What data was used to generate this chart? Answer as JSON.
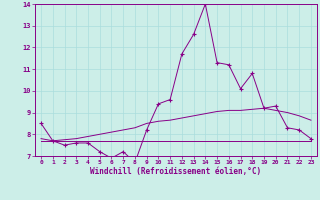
{
  "xlabel": "Windchill (Refroidissement éolien,°C)",
  "bg_color": "#cceee8",
  "line_color": "#880088",
  "grid_color": "#aadddd",
  "xlim": [
    -0.5,
    23.5
  ],
  "ylim": [
    7,
    14
  ],
  "yticks": [
    7,
    8,
    9,
    10,
    11,
    12,
    13,
    14
  ],
  "xticks": [
    0,
    1,
    2,
    3,
    4,
    5,
    6,
    7,
    8,
    9,
    10,
    11,
    12,
    13,
    14,
    15,
    16,
    17,
    18,
    19,
    20,
    21,
    22,
    23
  ],
  "series1_x": [
    0,
    1,
    2,
    3,
    4,
    5,
    6,
    7,
    8,
    9,
    10,
    11,
    12,
    13,
    14,
    15,
    16,
    17,
    18,
    19,
    20,
    21,
    22,
    23
  ],
  "series1_y": [
    8.5,
    7.7,
    7.5,
    7.6,
    7.6,
    7.2,
    6.9,
    7.2,
    6.7,
    8.2,
    9.4,
    9.6,
    11.7,
    12.6,
    14.0,
    11.3,
    11.2,
    10.1,
    10.8,
    9.2,
    9.3,
    8.3,
    8.2,
    7.8
  ],
  "series2_x": [
    0,
    1,
    2,
    3,
    4,
    5,
    6,
    7,
    8,
    9,
    10,
    11,
    12,
    13,
    14,
    15,
    16,
    17,
    18,
    19,
    20,
    21,
    22,
    23
  ],
  "series2_y": [
    7.8,
    7.7,
    7.75,
    7.8,
    7.9,
    8.0,
    8.1,
    8.2,
    8.3,
    8.5,
    8.6,
    8.65,
    8.75,
    8.85,
    8.95,
    9.05,
    9.1,
    9.1,
    9.15,
    9.2,
    9.1,
    9.0,
    8.85,
    8.65
  ],
  "series3_x": [
    0,
    1,
    2,
    3,
    4,
    5,
    6,
    7,
    8,
    9,
    10,
    11,
    12,
    13,
    14,
    15,
    16,
    17,
    18,
    19,
    20,
    21,
    22,
    23
  ],
  "series3_y": [
    7.7,
    7.7,
    7.7,
    7.7,
    7.7,
    7.7,
    7.7,
    7.7,
    7.7,
    7.7,
    7.7,
    7.7,
    7.7,
    7.7,
    7.7,
    7.7,
    7.7,
    7.7,
    7.7,
    7.7,
    7.7,
    7.7,
    7.7,
    7.7
  ]
}
